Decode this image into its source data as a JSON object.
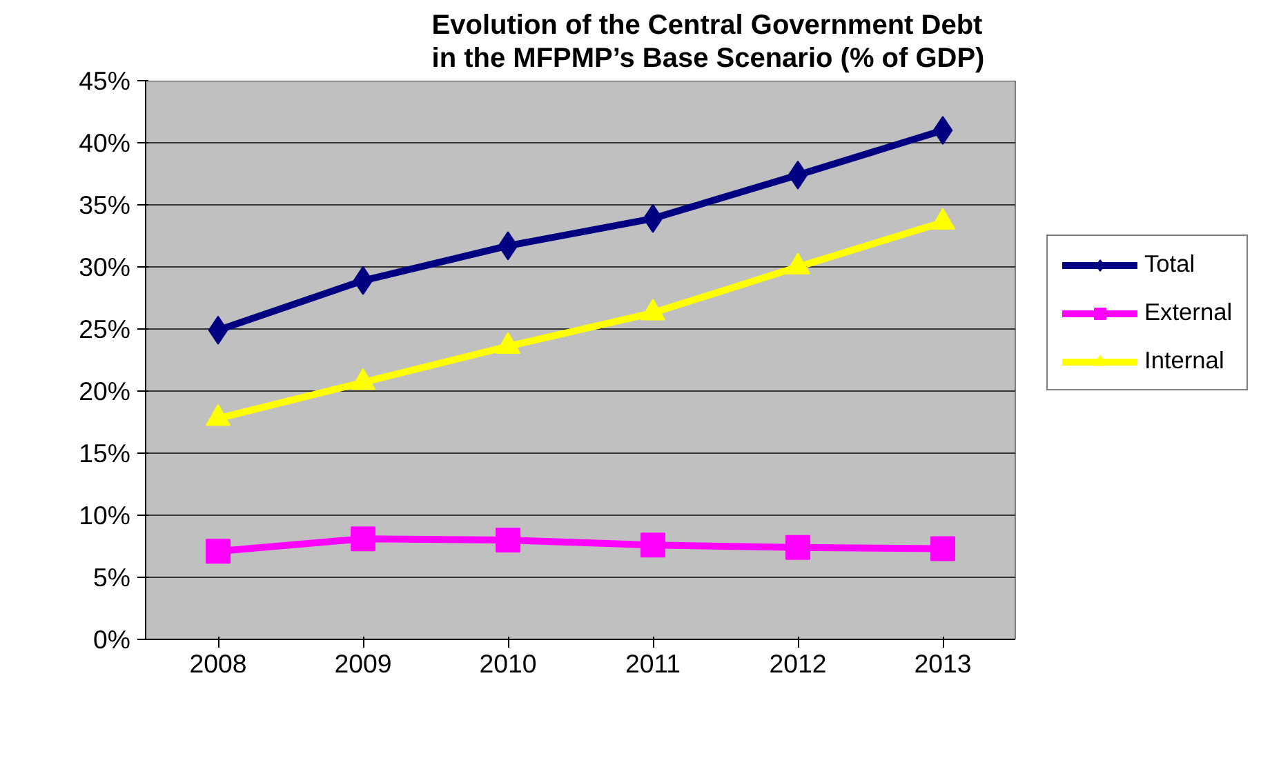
{
  "chart_data": {
    "type": "line",
    "title": "Evolution of the Central Government Debt\nin the MFPMP’s Base Scenario (% of GDP)",
    "categories": [
      "2008",
      "2009",
      "2010",
      "2011",
      "2012",
      "2013"
    ],
    "series": [
      {
        "name": "Total",
        "color": "#000080",
        "marker": "diamond",
        "values": [
          24.9,
          28.9,
          31.7,
          33.9,
          37.4,
          41.0
        ]
      },
      {
        "name": "External",
        "color": "#ff00ff",
        "marker": "square",
        "values": [
          7.1,
          8.1,
          8.0,
          7.6,
          7.4,
          7.3
        ]
      },
      {
        "name": "Internal",
        "color": "#ffff00",
        "marker": "triangle",
        "values": [
          17.8,
          20.7,
          23.6,
          26.3,
          30.0,
          33.6
        ]
      }
    ],
    "ylim": [
      0,
      45
    ],
    "yticks": [
      {
        "value": 0,
        "label": "0%"
      },
      {
        "value": 5,
        "label": "5%"
      },
      {
        "value": 10,
        "label": "10%"
      },
      {
        "value": 15,
        "label": "15%"
      },
      {
        "value": 20,
        "label": "20%"
      },
      {
        "value": 25,
        "label": "25%"
      },
      {
        "value": 30,
        "label": "30%"
      },
      {
        "value": 35,
        "label": "35%"
      },
      {
        "value": 40,
        "label": "40%"
      },
      {
        "value": 45,
        "label": "45%"
      }
    ],
    "grid": "y",
    "legend": "right",
    "line_style": "solid"
  }
}
